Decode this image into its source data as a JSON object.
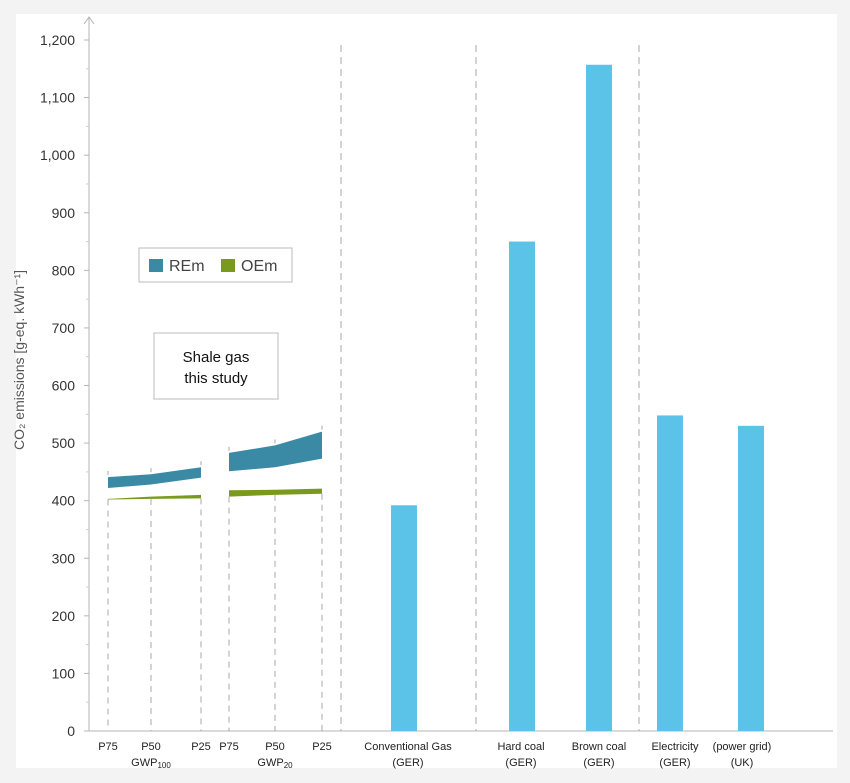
{
  "chart_data": {
    "type": "bar",
    "ylabel": "CO₂ emissions [g-eq. kWh⁻¹]",
    "ylim": [
      0,
      1200
    ],
    "yticks": [
      "0",
      "100",
      "200",
      "300",
      "400",
      "500",
      "600",
      "700",
      "800",
      "900",
      "1,000",
      "1,100",
      "1,200"
    ],
    "ytick_values": [
      0,
      100,
      200,
      300,
      400,
      500,
      600,
      700,
      800,
      900,
      1000,
      1100,
      1200
    ],
    "legend": {
      "placement": "upper-left",
      "items": [
        {
          "name": "REm",
          "color": "#3a8aa5"
        },
        {
          "name": "OEm",
          "color": "#7a9a1e"
        }
      ]
    },
    "annotation": {
      "line1": "Shale gas",
      "line2": "this study"
    },
    "shale_gas": {
      "groups": [
        {
          "label": "GWP",
          "sub": "100",
          "points": [
            "P75",
            "P50",
            "P25"
          ],
          "rem_low": [
            422,
            428,
            440
          ],
          "rem_high": [
            441,
            446,
            458
          ],
          "oem_low": [
            402,
            403,
            404
          ],
          "oem_high": [
            403,
            407,
            410
          ]
        },
        {
          "label": "GWP",
          "sub": "20",
          "points": [
            "P75",
            "P50",
            "P25"
          ],
          "rem_low": [
            451,
            458,
            473
          ],
          "rem_high": [
            483,
            496,
            520
          ],
          "oem_low": [
            407,
            410,
            412
          ],
          "oem_high": [
            418,
            419,
            421
          ]
        }
      ]
    },
    "bars": [
      {
        "line1": "Conventional Gas",
        "line2": "(GER)",
        "value": 392
      },
      {
        "line1": "Hard coal",
        "line2": "(GER)",
        "value": 850
      },
      {
        "line1": "Brown coal",
        "line2": "(GER)",
        "value": 1157
      },
      {
        "line1": "Electricity",
        "line2": "(GER)",
        "value": 548
      },
      {
        "line1": "(power grid)",
        "line2": "(UK)",
        "value": 530
      }
    ],
    "bar_color": "#5bc2e8",
    "grid": false
  }
}
